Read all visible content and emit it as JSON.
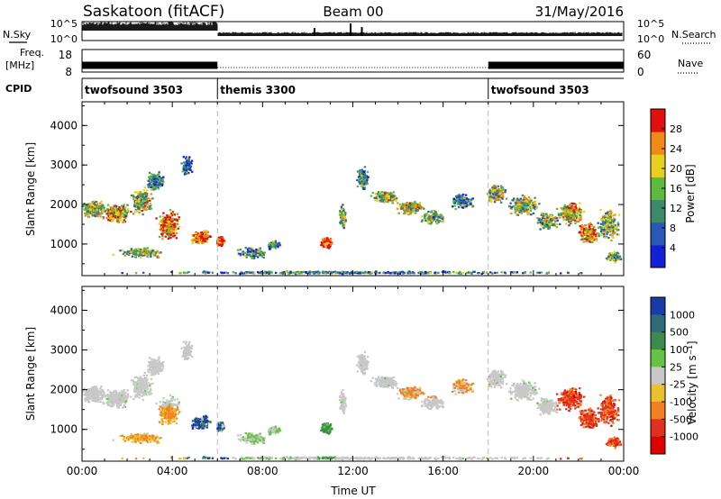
{
  "header": {
    "station": "Saskatoon (fitACF)",
    "beam": "Beam 00",
    "date": "31/May/2016"
  },
  "labels": {
    "nsky": "N.Sky",
    "nsearch": "N.Search",
    "freq": "Freq.",
    "freq_unit": "[MHz]",
    "nave": "Nave",
    "cpid": "CPID"
  },
  "modes": [
    {
      "name": "twofsound 3503",
      "start_h": 0,
      "end_h": 6
    },
    {
      "name": "themis 3300",
      "start_h": 6,
      "end_h": 18
    },
    {
      "name": "twofsound 3503",
      "start_h": 18,
      "end_h": 24
    }
  ],
  "chart_data": [
    {
      "type": "line",
      "name": "noise-panel",
      "left_ticks": [
        "10^5",
        "10^0"
      ],
      "right_ticks": [
        "10^5",
        "10^0"
      ],
      "dense_until_h": 6
    },
    {
      "type": "line",
      "name": "frequency-panel",
      "left_ticks": [
        "18",
        "8"
      ],
      "right_ticks": [
        "60",
        "0"
      ],
      "ylim_left": [
        8,
        18
      ],
      "ylim_right": [
        0,
        60
      ],
      "segments": [
        {
          "start_h": 0,
          "end_h": 6,
          "value": 11
        },
        {
          "start_h": 6,
          "end_h": 18,
          "value": 10
        },
        {
          "start_h": 18,
          "end_h": 24,
          "value": 11
        }
      ]
    },
    {
      "type": "heatmap",
      "name": "power-panel",
      "ylabel": "Slant Range [km]",
      "ylim": [
        200,
        4600
      ],
      "yticks": [
        1000,
        2000,
        3000,
        4000
      ],
      "xlim": [
        0,
        24
      ],
      "colorbar_label": "Power [dB]",
      "colorbar_ticks": [
        4,
        8,
        12,
        16,
        20,
        24,
        28
      ],
      "colorbar_range": [
        0,
        32
      ],
      "colors": [
        "#1420d8",
        "#2a58b8",
        "#3c8a6a",
        "#5cbb3c",
        "#e8d020",
        "#f08a18",
        "#e01010"
      ]
    },
    {
      "type": "heatmap",
      "name": "velocity-panel",
      "ylabel": "Slant Range [km]",
      "ylim": [
        200,
        4600
      ],
      "yticks": [
        1000,
        2000,
        3000,
        4000
      ],
      "xlim": [
        0,
        24
      ],
      "xlabel": "Time UT",
      "xticks": [
        "00:00",
        "04:00",
        "08:00",
        "12:00",
        "16:00",
        "20:00",
        "00:00"
      ],
      "colorbar_label": "Velocity [m s⁻¹]",
      "colorbar_ticks": [
        "1000",
        "500",
        "100",
        "25",
        "-25",
        "-100",
        "-500",
        "-1000"
      ],
      "colors": [
        "#1a3ca8",
        "#2e6a7a",
        "#3c8a50",
        "#66c444",
        "#c8c8c8",
        "#e8c030",
        "#f08020",
        "#e03020",
        "#e00000"
      ]
    }
  ]
}
